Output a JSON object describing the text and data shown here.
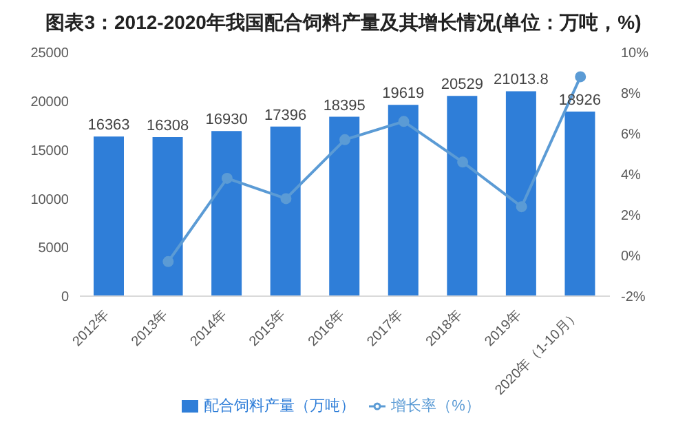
{
  "chart_data": {
    "type": "bar",
    "title": "图表3：2012-2020年我国配合饲料产量及其增长情况(单位：万吨，%)",
    "categories": [
      "2012年",
      "2013年",
      "2014年",
      "2015年",
      "2016年",
      "2017年",
      "2018年",
      "2019年",
      "2020年（1-10月）"
    ],
    "series": [
      {
        "name": "配合饲料产量（万吨）",
        "color": "#2f7ed8",
        "values": [
          16363,
          16308,
          16930,
          17396,
          18395,
          19619,
          20529,
          21013.8,
          18926
        ],
        "data_labels": true
      },
      {
        "name": "增长率（%）",
        "type": "line",
        "axis": "y2",
        "color": "#5b9bd5",
        "marker": "circle",
        "values": [
          null,
          -0.3,
          3.8,
          2.8,
          5.7,
          6.6,
          4.6,
          2.4,
          8.8
        ]
      }
    ],
    "ylim": [
      0,
      25000
    ],
    "yticks": [
      0,
      5000,
      10000,
      15000,
      20000,
      25000
    ],
    "y2lim": [
      -2,
      10
    ],
    "y2ticks": [
      {
        "value": -2,
        "label": "-2%"
      },
      {
        "value": 0,
        "label": "0%"
      },
      {
        "value": 2,
        "label": "2%"
      },
      {
        "value": 4,
        "label": "4%"
      },
      {
        "value": 6,
        "label": "6%"
      },
      {
        "value": 8,
        "label": "8%"
      },
      {
        "value": 10,
        "label": "10%"
      }
    ],
    "grid": false,
    "legend": "bottom"
  }
}
